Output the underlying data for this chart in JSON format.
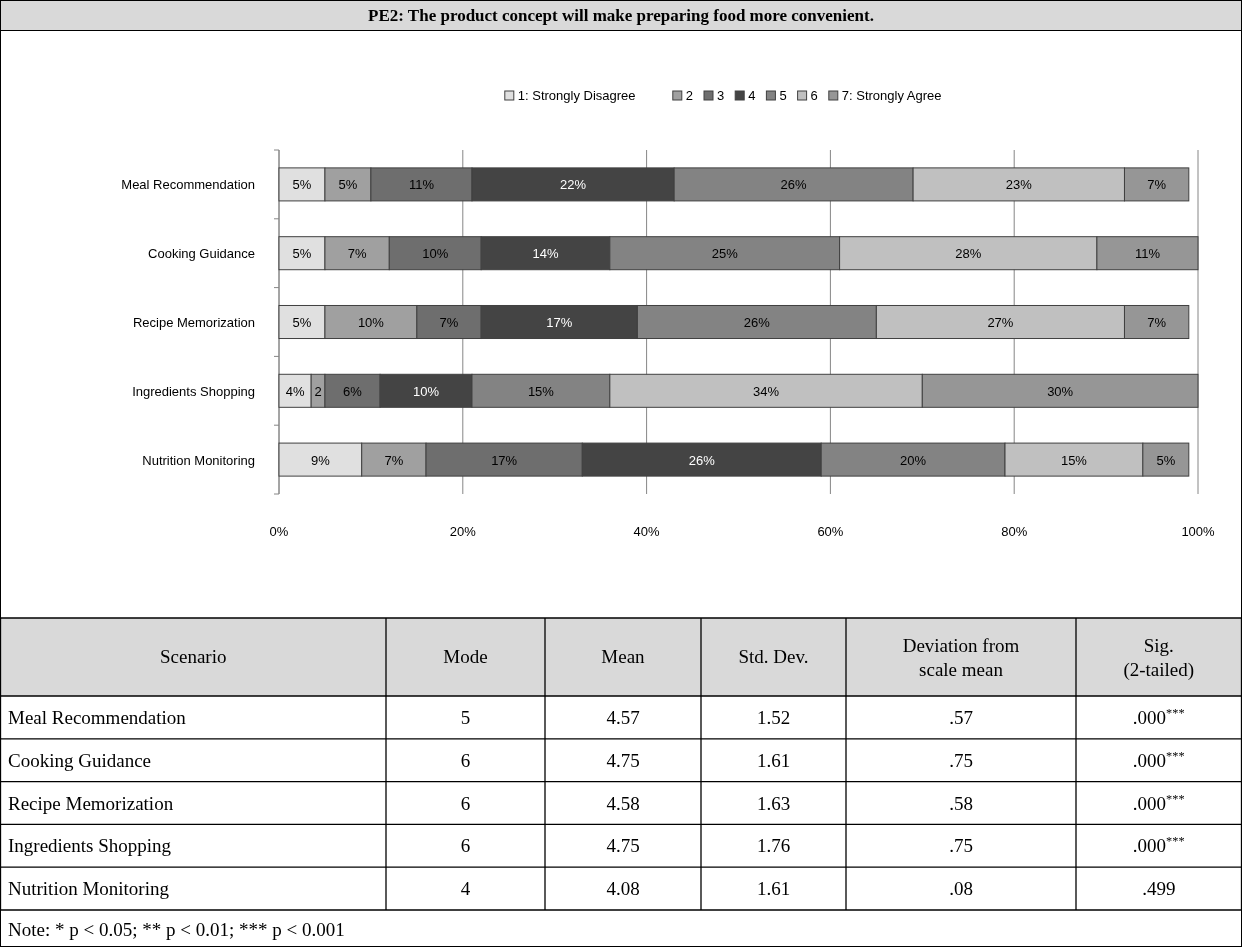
{
  "chart_data": [
    {
      "type": "bar",
      "orientation": "horizontal",
      "stacked": true,
      "title": "PE2: The product concept will make preparing food more convenient.",
      "categories": [
        "Meal Recommendation",
        "Cooking Guidance",
        "Recipe Memorization",
        "Ingredients Shopping",
        "Nutrition Monitoring"
      ],
      "series": [
        {
          "name": "1: Strongly Disagree",
          "color": "#e0e0e0",
          "values": [
            5,
            5,
            5,
            3.5,
            9
          ],
          "value_labels": [
            "5%",
            "5%",
            "5%",
            "4%",
            "9%"
          ]
        },
        {
          "name": "2",
          "color": "#a0a0a0",
          "values": [
            5,
            7,
            10,
            1.5,
            7
          ],
          "value_labels": [
            "5%",
            "7%",
            "10%",
            "2",
            "7%"
          ]
        },
        {
          "name": "3",
          "color": "#6e6e6e",
          "values": [
            11,
            10,
            7,
            6,
            17
          ],
          "value_labels": [
            "11%",
            "10%",
            "7%",
            "6%",
            "17%"
          ]
        },
        {
          "name": "4",
          "color": "#444444",
          "values": [
            22,
            14,
            17,
            10,
            26
          ],
          "value_labels": [
            "22%",
            "14%",
            "17%",
            "10%",
            "26%"
          ]
        },
        {
          "name": "5",
          "color": "#838383",
          "values": [
            26,
            25,
            26,
            15,
            20
          ],
          "value_labels": [
            "26%",
            "25%",
            "26%",
            "15%",
            "20%"
          ]
        },
        {
          "name": "6",
          "color": "#c0c0c0",
          "values": [
            23,
            28,
            27,
            34,
            15
          ],
          "value_labels": [
            "23%",
            "28%",
            "27%",
            "34%",
            "15%"
          ]
        },
        {
          "name": "7: Strongly Agree",
          "color": "#969696",
          "values": [
            7,
            11,
            7,
            30,
            5
          ],
          "value_labels": [
            "7%",
            "11%",
            "7%",
            "30%",
            "5%"
          ]
        }
      ],
      "xlim": [
        0,
        100
      ],
      "xticks": [
        {
          "value": 0,
          "label": "0%"
        },
        {
          "value": 20,
          "label": "20%"
        },
        {
          "value": 40,
          "label": "40%"
        },
        {
          "value": 60,
          "label": "60%"
        },
        {
          "value": 80,
          "label": "80%"
        },
        {
          "value": 100,
          "label": "100%"
        }
      ],
      "grid": "x",
      "legend": "top"
    },
    {
      "type": "other",
      "categories": [
        "Scenario",
        "Mode",
        "Mean",
        "Std. Dev.",
        "Deviation from\nscale mean",
        "Sig.\n(2-tailed)"
      ],
      "y_categories": [
        "Meal Recommendation",
        "Cooking Guidance",
        "Recipe Memorization",
        "Ingredients Shopping",
        "Nutrition Monitoring"
      ],
      "cell_labels": [
        [
          "5",
          "4.57",
          "1.52",
          ".57",
          ".000$^{***}$"
        ],
        [
          "6",
          "4.75",
          "1.61",
          ".75",
          ".000$^{***}$"
        ],
        [
          "6",
          "4.58",
          "1.63",
          ".58",
          ".000$^{***}$"
        ],
        [
          "6",
          "4.75",
          "1.76",
          ".75",
          ".000$^{***}$"
        ],
        [
          "4",
          "4.08",
          "1.61",
          ".08",
          ".499"
        ]
      ],
      "annotations": [
        "Note: * p < 0.05; ** p < 0.01; *** p < 0.001"
      ]
    }
  ]
}
